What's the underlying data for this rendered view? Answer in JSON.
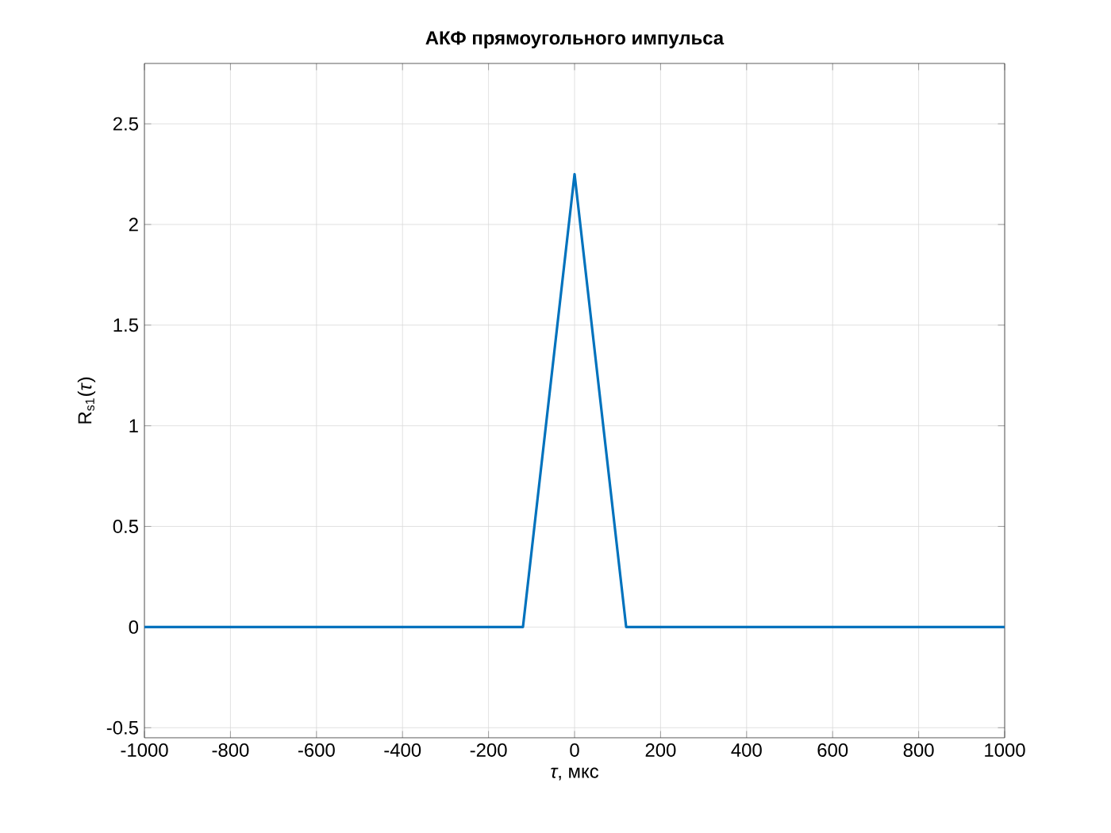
{
  "chart_data": {
    "type": "line",
    "title": "**АКФ прямоугольного импульса**",
    "xlabel": "*τ*, мкс",
    "ylabel": "R$_{s1}$(*τ*)",
    "x": [
      -1000,
      -120,
      0,
      120,
      1000
    ],
    "series": [
      {
        "color": "#0072bd",
        "values": [
          0,
          0,
          2.25,
          0,
          0
        ]
      }
    ],
    "xlim": [
      -1000,
      1000
    ],
    "xticks": [
      -1000,
      -800,
      -600,
      -400,
      -200,
      0,
      200,
      400,
      600,
      800,
      1000
    ],
    "ylim": [
      -0.55,
      2.8
    ],
    "yticks": [
      -0.5,
      0,
      0.5,
      1,
      1.5,
      2,
      2.5
    ],
    "grid": true,
    "marker": "none",
    "line_style": "solid"
  }
}
